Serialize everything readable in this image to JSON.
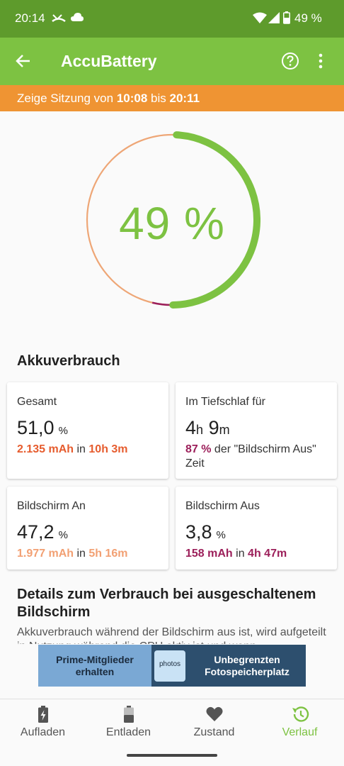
{
  "status_bar": {
    "time": "20:14",
    "battery_text": "49 %"
  },
  "app_bar": {
    "title": "AccuBattery"
  },
  "session": {
    "prefix": "Zeige Sitzung von ",
    "start": "10:08",
    "middle": " bis ",
    "end": "20:11"
  },
  "gauge": {
    "percent_text": "49 %",
    "level": 0.49
  },
  "usage": {
    "title": "Akkuverbrauch",
    "total": {
      "label": "Gesamt",
      "value": "51,0",
      "unit": "%",
      "mah": "2.135 mAh",
      "in_text": " in ",
      "duration": "10h 3m"
    },
    "deep_sleep": {
      "label": "Im Tiefschlaf für",
      "hours": "4",
      "h_unit": "h",
      "minutes": "9",
      "m_unit": "m",
      "percent": "87 %",
      "rest": " der \"Bildschirm Aus\" Zeit"
    },
    "screen_on": {
      "label": "Bildschirm An",
      "value": "47,2",
      "unit": "%",
      "mah": "1.977 mAh",
      "in_text": " in ",
      "duration": "5h 16m"
    },
    "screen_off": {
      "label": "Bildschirm Aus",
      "value": "3,8",
      "unit": "%",
      "mah": "158 mAh",
      "in_text": " in ",
      "duration": "4h 47m"
    }
  },
  "details": {
    "title": "Details zum Verbrauch bei ausgeschaltenem Bildschirm",
    "text": "Akkuverbrauch während der Bildschirm aus ist, wird aufgeteilt in Nutzung während die CPU aktiv ist und wenn"
  },
  "ad": {
    "left_text": "Prime-Mitglieder erhalten",
    "logo_text": "photos",
    "right_text": "Unbegrenzten Fotospeicherplatz"
  },
  "nav": [
    {
      "label": "Aufladen",
      "icon": "battery-charging-icon"
    },
    {
      "label": "Entladen",
      "icon": "battery-discharging-icon"
    },
    {
      "label": "Zustand",
      "icon": "heart-icon"
    },
    {
      "label": "Verlauf",
      "icon": "history-icon"
    }
  ],
  "colors": {
    "accent_green": "#7dc242",
    "dark_green": "#5e9b2c",
    "orange": "#ef9433",
    "total_red": "#e65c2e",
    "screen_on_orange": "#f2a073",
    "screen_off_maroon": "#9c1f5a"
  }
}
